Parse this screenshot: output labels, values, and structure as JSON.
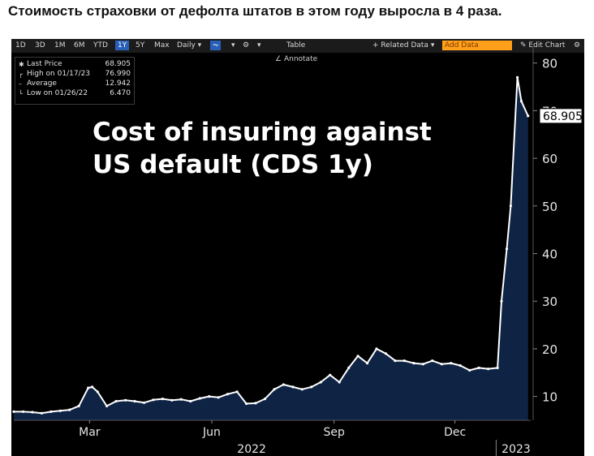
{
  "headline": "Стоимость страховки от дефолта штатов в этом году выросла в 4 раза.",
  "toolbar": {
    "periods": [
      "1D",
      "3D",
      "1M",
      "6M",
      "YTD",
      "1Y",
      "5Y",
      "Max"
    ],
    "active_period": "1Y",
    "frequency": "Daily",
    "table": "Table",
    "related": "+ Related Data",
    "add_data_placeholder": "Add Data",
    "edit_chart": "Edit Chart"
  },
  "annotate": "Annotate",
  "legend": [
    {
      "label": "Last Price",
      "value": "68.905"
    },
    {
      "label": "High on 01/17/23",
      "value": "76.990"
    },
    {
      "label": "Average",
      "value": "12.942"
    },
    {
      "label": "Low on 01/26/22",
      "value": "6.470"
    }
  ],
  "overlay_title": [
    "Cost of insuring against",
    "US default (CDS 1y)"
  ],
  "last_price_label": "68.905",
  "colors": {
    "line": "#ffffff",
    "area": "#0f2444",
    "last_label_bg": "#ffffff"
  },
  "chart_data": {
    "type": "area",
    "title": "Cost of insuring against US default (CDS 1y)",
    "x_tick_labels": [
      "Mar",
      "Jun",
      "Sep",
      "Dec"
    ],
    "year_labels": [
      "2022",
      "2023"
    ],
    "y_ticks": [
      10,
      20,
      30,
      40,
      50,
      60,
      70,
      80
    ],
    "ylim": [
      5,
      82
    ],
    "xlim": [
      "2022-01-03",
      "2023-01-27"
    ],
    "grid": false,
    "series": [
      {
        "x": [
          "2022-01-03",
          "2022-01-10",
          "2022-01-17",
          "2022-01-24",
          "2022-01-31",
          "2022-02-07",
          "2022-02-14",
          "2022-02-21",
          "2022-02-28",
          "2022-03-03",
          "2022-03-07",
          "2022-03-14",
          "2022-03-21",
          "2022-03-28",
          "2022-04-04",
          "2022-04-11",
          "2022-04-18",
          "2022-04-25",
          "2022-05-02",
          "2022-05-09",
          "2022-05-16",
          "2022-05-23",
          "2022-05-30",
          "2022-06-06",
          "2022-06-13",
          "2022-06-20",
          "2022-06-27",
          "2022-07-04",
          "2022-07-11",
          "2022-07-18",
          "2022-07-25",
          "2022-08-01",
          "2022-08-08",
          "2022-08-15",
          "2022-08-22",
          "2022-08-29",
          "2022-09-05",
          "2022-09-12",
          "2022-09-19",
          "2022-09-26",
          "2022-10-03",
          "2022-10-10",
          "2022-10-17",
          "2022-10-24",
          "2022-10-31",
          "2022-11-07",
          "2022-11-14",
          "2022-11-21",
          "2022-11-28",
          "2022-12-05",
          "2022-12-12",
          "2022-12-19",
          "2022-12-26",
          "2023-01-02",
          "2023-01-05",
          "2023-01-09",
          "2023-01-12",
          "2023-01-17",
          "2023-01-20",
          "2023-01-25"
        ],
        "y": [
          6.8,
          6.8,
          6.7,
          6.5,
          6.8,
          7.0,
          7.2,
          8.0,
          11.8,
          12.0,
          11.0,
          8.0,
          9.0,
          9.2,
          9.0,
          8.7,
          9.3,
          9.5,
          9.2,
          9.4,
          9.0,
          9.6,
          10.0,
          9.8,
          10.5,
          11.0,
          8.5,
          8.6,
          9.5,
          11.5,
          12.5,
          12.0,
          11.5,
          12.0,
          13.0,
          14.5,
          13.0,
          16.0,
          18.5,
          17.0,
          20.0,
          19.0,
          17.5,
          17.5,
          17.0,
          16.8,
          17.5,
          16.8,
          17.0,
          16.5,
          15.5,
          16.0,
          15.8,
          16.0,
          30.0,
          41.0,
          50.0,
          76.99,
          72.0,
          68.905
        ]
      }
    ]
  }
}
